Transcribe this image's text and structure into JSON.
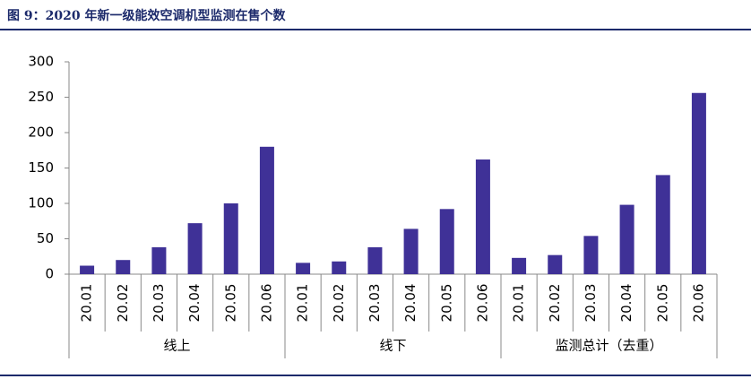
{
  "chart_data": {
    "type": "bar",
    "title": "图 9：2020 年新一级能效空调机型监测在售个数",
    "categories": [
      "20.01",
      "20.02",
      "20.03",
      "20.04",
      "20.05",
      "20.06",
      "20.01",
      "20.02",
      "20.03",
      "20.04",
      "20.05",
      "20.06",
      "20.01",
      "20.02",
      "20.03",
      "20.04",
      "20.05",
      "20.06"
    ],
    "groups": [
      "线上",
      "线下",
      "监测总计（去重）"
    ],
    "values": [
      12,
      20,
      38,
      72,
      100,
      180,
      16,
      18,
      38,
      64,
      92,
      162,
      23,
      27,
      54,
      98,
      140,
      256
    ],
    "color": "#3f3197",
    "ylim": [
      0,
      300
    ],
    "yticks": [
      0,
      50,
      100,
      150,
      200,
      250,
      300
    ],
    "grid": false
  }
}
